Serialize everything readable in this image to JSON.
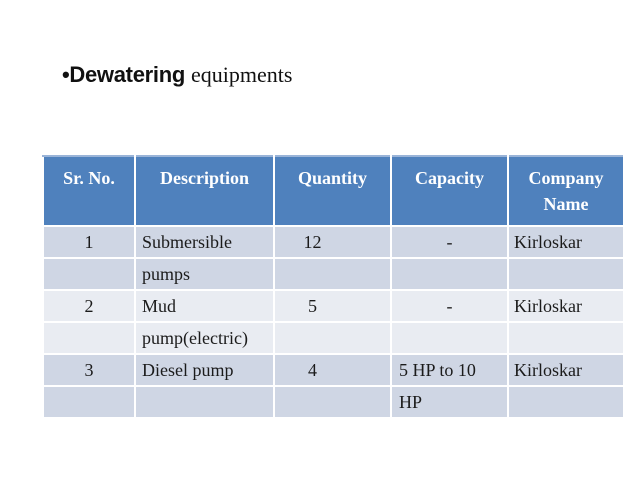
{
  "slide": {
    "title_bullet": "•",
    "title_main": "Dewatering",
    "title_secondary": "equipments"
  },
  "table": {
    "columns": [
      {
        "lines": [
          "Sr. No."
        ]
      },
      {
        "lines": [
          "Description"
        ]
      },
      {
        "lines": [
          "Quantity"
        ]
      },
      {
        "lines": [
          "Capacity"
        ]
      },
      {
        "lines": [
          "Company",
          "Name"
        ]
      }
    ],
    "rows": [
      {
        "cells": [
          [
            "1",
            ""
          ],
          [
            "Submersible",
            "pumps"
          ],
          [
            "12",
            ""
          ],
          [
            "-",
            ""
          ],
          [
            "Kirloskar",
            ""
          ]
        ]
      },
      {
        "cells": [
          [
            "2",
            ""
          ],
          [
            "Mud",
            "pump(electric)"
          ],
          [
            "5",
            ""
          ],
          [
            "-",
            ""
          ],
          [
            "Kirloskar",
            ""
          ]
        ]
      },
      {
        "cells": [
          [
            "3",
            ""
          ],
          [
            "Diesel pump",
            ""
          ],
          [
            "4",
            ""
          ],
          [
            "5 HP to 10",
            "HP"
          ],
          [
            "Kirloskar",
            ""
          ]
        ]
      }
    ]
  },
  "colors": {
    "header_bg": "#4f81bd",
    "header_text": "#ffffff",
    "band_dark": "#cfd6e4",
    "band_light": "#e9ecf2",
    "body_text": "#1b1b1b",
    "table_top_edge": "#9ab4d8",
    "separator": "#ffffff"
  }
}
